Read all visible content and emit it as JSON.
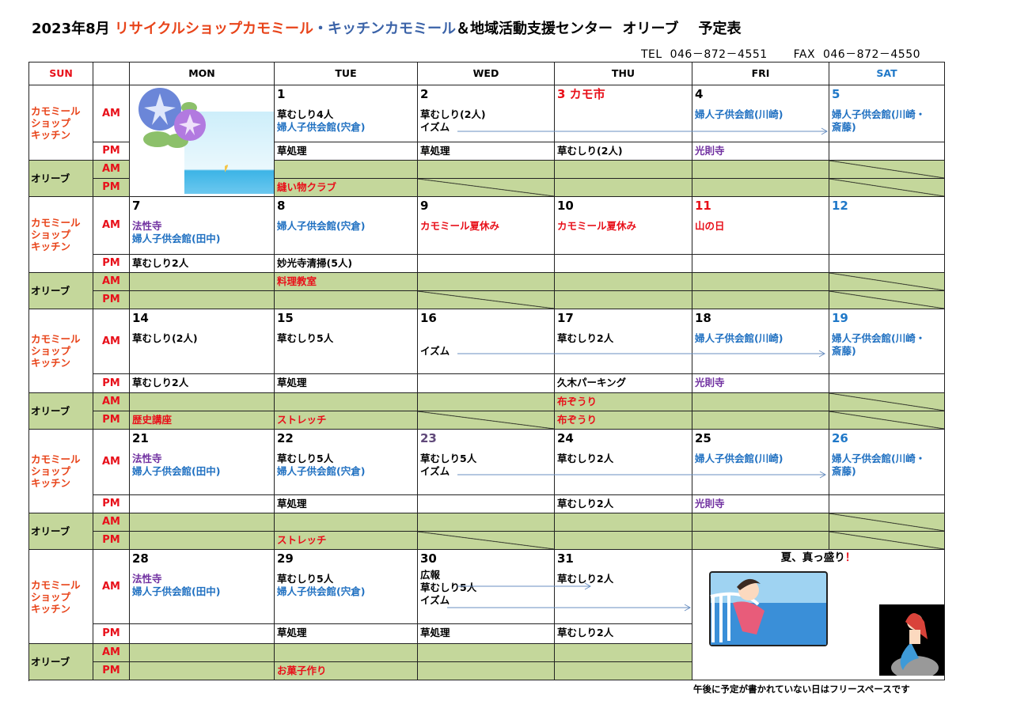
{
  "header": {
    "title_prefix": "2023年8月",
    "title_red": "リサイクルショップカモミール",
    "title_blue": "・キッチンカモミール",
    "title_rest": "＆地域活動支援センター  オリーブ    予定表",
    "tel": "TEL  046－872－4551",
    "fax": "FAX  046－872－4550"
  },
  "colors": {
    "black": "#000000",
    "blue": "#1f70c1",
    "red": "#e8101a",
    "purple": "#7030a0",
    "sat": "#1f78c8",
    "violet": "#60497a",
    "green": "#c4d79b",
    "orange": "#e8441a"
  },
  "weekdays": [
    {
      "label": "SUN",
      "color": "red"
    },
    {
      "label": "",
      "color": "black"
    },
    {
      "label": "MON",
      "color": "black"
    },
    {
      "label": "TUE",
      "color": "black"
    },
    {
      "label": "WED",
      "color": "black"
    },
    {
      "label": "THU",
      "color": "black"
    },
    {
      "label": "FRI",
      "color": "black"
    },
    {
      "label": "SAT",
      "color": "sat"
    }
  ],
  "row_labels": {
    "group1": "カモミール\nショップ\nキッチン",
    "group2": "オリーブ",
    "am": "AM",
    "pm": "PM"
  },
  "weeks": [
    {
      "days": [
        null,
        {
          "n": "1",
          "nc": "black",
          "am": [
            [
              "草むしり4人",
              "black"
            ],
            [
              "婦人子供会館(宍倉)",
              "blue"
            ]
          ],
          "pm": [
            [
              "草処理",
              "black"
            ]
          ],
          "oam": [],
          "opm": [
            [
              "縫い物クラブ",
              "red"
            ]
          ]
        },
        {
          "n": "2",
          "nc": "black",
          "am": [
            [
              "草むしり(2人)",
              "black"
            ],
            [
              "イズム",
              "black"
            ]
          ],
          "pm": [
            [
              "草処理",
              "black"
            ]
          ],
          "oam": [],
          "opm": [],
          "slash": [
            "opm"
          ]
        },
        {
          "n": "3 カモ市",
          "nc": "red",
          "am": [],
          "pm": [
            [
              "草むしり(2人)",
              "black"
            ]
          ],
          "oam": [],
          "opm": []
        },
        {
          "n": "4",
          "nc": "black",
          "am": [
            [
              "婦人子供会館(川崎)",
              "blue"
            ]
          ],
          "pm": [
            [
              "光則寺",
              "purple"
            ]
          ],
          "oam": [],
          "opm": []
        },
        {
          "n": "5",
          "nc": "sat",
          "am": [
            [
              "婦人子供会館(川崎・",
              "blue"
            ],
            [
              "斎藤)",
              "blue"
            ]
          ],
          "pm": [],
          "oam": [],
          "opm": [],
          "slash": [
            "oam",
            "opm"
          ]
        }
      ],
      "arrows": [
        [
          "イズム",
          "WED",
          "SAT"
        ]
      ]
    },
    {
      "days": [
        {
          "n": "7",
          "nc": "black",
          "am": [
            [
              "法性寺",
              "purple"
            ],
            [
              "婦人子供会館(田中)",
              "blue"
            ]
          ],
          "pm": [
            [
              "草むしり2人",
              "black"
            ]
          ],
          "oam": [],
          "opm": []
        },
        {
          "n": "8",
          "nc": "black",
          "am": [
            [
              "婦人子供会館(宍倉)",
              "blue"
            ]
          ],
          "pm": [
            [
              "妙光寺清掃(5人)",
              "black"
            ]
          ],
          "oam": [
            [
              "料理教室",
              "red"
            ]
          ],
          "opm": []
        },
        {
          "n": "9",
          "nc": "black",
          "am": [
            [
              "カモミール夏休み",
              "red"
            ]
          ],
          "pm": [],
          "oam": [],
          "opm": [],
          "slash": [
            "opm"
          ]
        },
        {
          "n": "10",
          "nc": "black",
          "am": [
            [
              "カモミール夏休み",
              "red"
            ]
          ],
          "pm": [],
          "oam": [],
          "opm": []
        },
        {
          "n": "11",
          "nc": "red",
          "am": [
            [
              "山の日",
              "red"
            ]
          ],
          "pm": [],
          "oam": [],
          "opm": []
        },
        {
          "n": "12",
          "nc": "sat",
          "am": [],
          "pm": [],
          "oam": [],
          "opm": [],
          "slash": [
            "oam",
            "opm"
          ]
        }
      ]
    },
    {
      "days": [
        {
          "n": "14",
          "nc": "black",
          "am": [
            [
              "草むしり(2人)",
              "black"
            ]
          ],
          "pm": [
            [
              "草むしり2人",
              "black"
            ]
          ],
          "oam": [],
          "opm": [
            [
              "歴史講座",
              "red"
            ]
          ]
        },
        {
          "n": "15",
          "nc": "black",
          "am": [
            [
              "草むしり5人",
              "black"
            ]
          ],
          "pm": [
            [
              "草処理",
              "black"
            ]
          ],
          "oam": [],
          "opm": [
            [
              "ストレッチ",
              "red"
            ]
          ]
        },
        {
          "n": "16",
          "nc": "black",
          "am": [
            [
              "",
              ""
            ],
            [
              "イズム",
              "black"
            ]
          ],
          "pm": [],
          "oam": [],
          "opm": [],
          "slash": [
            "opm"
          ]
        },
        {
          "n": "17",
          "nc": "black",
          "am": [
            [
              "草むしり2人",
              "black"
            ]
          ],
          "pm": [
            [
              "久木パーキング",
              "black"
            ]
          ],
          "oam": [
            [
              "布ぞうり",
              "red"
            ]
          ],
          "opm": [
            [
              "布ぞうり",
              "red"
            ]
          ]
        },
        {
          "n": "18",
          "nc": "black",
          "am": [
            [
              "婦人子供会館(川崎)",
              "blue"
            ]
          ],
          "pm": [
            [
              "光則寺",
              "purple"
            ]
          ],
          "oam": [],
          "opm": []
        },
        {
          "n": "19",
          "nc": "sat",
          "am": [
            [
              "婦人子供会館(川崎・",
              "blue"
            ],
            [
              "斎藤)",
              "blue"
            ]
          ],
          "pm": [],
          "oam": [],
          "opm": [],
          "slash": [
            "oam",
            "opm"
          ]
        }
      ]
    },
    {
      "days": [
        {
          "n": "21",
          "nc": "black",
          "am": [
            [
              "法性寺",
              "purple"
            ],
            [
              "婦人子供会館(田中)",
              "blue"
            ]
          ],
          "pm": [],
          "oam": [],
          "opm": []
        },
        {
          "n": "22",
          "nc": "black",
          "am": [
            [
              "草むしり5人",
              "black"
            ],
            [
              "婦人子供会館(宍倉)",
              "blue"
            ]
          ],
          "pm": [
            [
              "草処理",
              "black"
            ]
          ],
          "oam": [],
          "opm": [
            [
              "ストレッチ",
              "red"
            ]
          ]
        },
        {
          "n": "23",
          "nc": "violet",
          "am": [
            [
              "草むしり5人",
              "black"
            ],
            [
              "イズム",
              "black"
            ]
          ],
          "pm": [],
          "oam": [],
          "opm": [],
          "slash": [
            "opm"
          ]
        },
        {
          "n": "24",
          "nc": "black",
          "am": [
            [
              "草むしり2人",
              "black"
            ]
          ],
          "pm": [
            [
              "草むしり2人",
              "black"
            ]
          ],
          "oam": [],
          "opm": []
        },
        {
          "n": "25",
          "nc": "black",
          "am": [
            [
              "婦人子供会館(川崎)",
              "blue"
            ]
          ],
          "pm": [
            [
              "光則寺",
              "purple"
            ]
          ],
          "oam": [],
          "opm": []
        },
        {
          "n": "26",
          "nc": "sat",
          "am": [
            [
              "婦人子供会館(川崎・",
              "blue"
            ],
            [
              "斎藤)",
              "blue"
            ]
          ],
          "pm": [],
          "oam": [],
          "opm": [],
          "slash": [
            "oam",
            "opm"
          ]
        }
      ]
    },
    {
      "days": [
        {
          "n": "28",
          "nc": "black",
          "am": [
            [
              "法性寺",
              "purple"
            ],
            [
              "婦人子供会館(田中)",
              "blue"
            ]
          ],
          "pm": [],
          "oam": [],
          "opm": []
        },
        {
          "n": "29",
          "nc": "black",
          "am": [
            [
              "草むしり5人",
              "black"
            ],
            [
              "婦人子供会館(宍倉)",
              "blue"
            ]
          ],
          "pm": [
            [
              "草処理",
              "black"
            ]
          ],
          "oam": [],
          "opm": [
            [
              "お菓子作り",
              "red"
            ]
          ]
        },
        {
          "n": "30",
          "nc": "black",
          "am": [
            [
              "広報",
              "black"
            ],
            [
              "草むしり5人",
              "black"
            ],
            [
              "イズム",
              "black"
            ]
          ],
          "pm": [
            [
              "草処理",
              "black"
            ]
          ],
          "oam": [],
          "opm": []
        },
        {
          "n": "31",
          "nc": "black",
          "am": [
            [
              "草むしり2人",
              "black"
            ]
          ],
          "pm": [
            [
              "草むしり2人",
              "black"
            ]
          ],
          "oam": [],
          "opm": []
        },
        null,
        null
      ]
    }
  ],
  "summer_box": {
    "text": "夏、真っ盛り",
    "mark": "！"
  },
  "images": {
    "week1_mon": "morning-glory-and-sea",
    "girl": "girl-on-ship",
    "mermaid": "mermaid-on-rock"
  },
  "footer_note": "午後に予定が書かれていない日はフリースペースです"
}
